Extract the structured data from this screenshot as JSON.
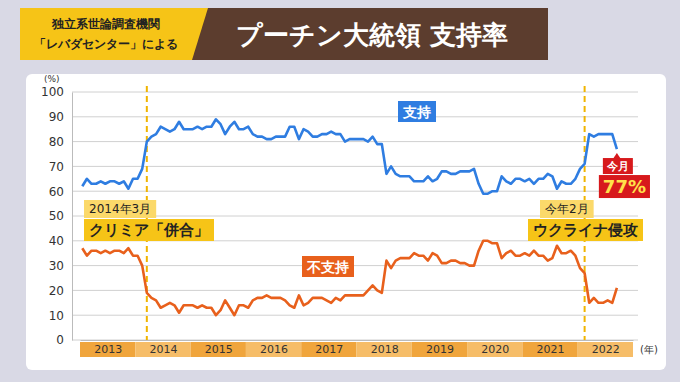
{
  "chart_data": {
    "type": "line",
    "title": "プーチン大統領 支持率",
    "source": [
      "独立系世論調査機関",
      "「レバダセンター」による"
    ],
    "ylabel": "(%)",
    "xlabel": "(年)",
    "categories": [
      "2013",
      null,
      null,
      null,
      null,
      null,
      null,
      null,
      null,
      null,
      null,
      null,
      "2014",
      null,
      null,
      null,
      null,
      null,
      null,
      null,
      null,
      null,
      null,
      null,
      "2015",
      null,
      null,
      null,
      null,
      null,
      null,
      null,
      null,
      null,
      null,
      null,
      "2016",
      null,
      null,
      null,
      null,
      null,
      null,
      null,
      null,
      null,
      null,
      null,
      "2017",
      null,
      null,
      null,
      null,
      null,
      null,
      null,
      null,
      null,
      null,
      null,
      "2018",
      null,
      null,
      null,
      null,
      null,
      null,
      null,
      null,
      null,
      null,
      null,
      "2019",
      null,
      null,
      null,
      null,
      null,
      null,
      null,
      null,
      null,
      null,
      null,
      "2020",
      null,
      null,
      null,
      null,
      null,
      null,
      null,
      null,
      null,
      null,
      null,
      "2021",
      null,
      null,
      null,
      null,
      null,
      null,
      null,
      null,
      null,
      null,
      null,
      "2022",
      null,
      null,
      null,
      null,
      null,
      null,
      null,
      null,
      null,
      null,
      null
    ],
    "series": [
      {
        "name": "支持",
        "color": "#2f7de1",
        "values": [
          62,
          65,
          63,
          63,
          64,
          63,
          64,
          64,
          63,
          64,
          61,
          65,
          65,
          69,
          80,
          82,
          83,
          86,
          85,
          84,
          85,
          88,
          85,
          85,
          85,
          86,
          85,
          86,
          86,
          89,
          87,
          83,
          86,
          88,
          85,
          85,
          86,
          83,
          82,
          82,
          81,
          81,
          82,
          82,
          82,
          86,
          86,
          81,
          85,
          84,
          82,
          82,
          83,
          83,
          84,
          83,
          83,
          80,
          81,
          81,
          81,
          81,
          80,
          82,
          79,
          79,
          67,
          70,
          67,
          66,
          66,
          66,
          64,
          64,
          64,
          66,
          64,
          65,
          68,
          68,
          67,
          67,
          68,
          68,
          68,
          69,
          63,
          59,
          59,
          60,
          60,
          66,
          64,
          63,
          65,
          65,
          64,
          65,
          63,
          65,
          65,
          67,
          66,
          61,
          64,
          63,
          63,
          65,
          69,
          71,
          83,
          82,
          83,
          83,
          83,
          83,
          77,
          null,
          null,
          null
        ]
      },
      {
        "name": "不支持",
        "color": "#e8601c",
        "values": [
          37,
          34,
          36,
          36,
          35,
          36,
          35,
          36,
          36,
          35,
          37,
          34,
          34,
          30,
          19,
          17,
          16,
          13,
          14,
          15,
          14,
          11,
          14,
          14,
          14,
          13,
          14,
          13,
          13,
          10,
          12,
          16,
          13,
          10,
          14,
          14,
          13,
          16,
          17,
          17,
          18,
          17,
          17,
          17,
          16,
          14,
          13,
          18,
          14,
          15,
          17,
          17,
          17,
          16,
          15,
          17,
          16,
          18,
          18,
          18,
          18,
          18,
          20,
          22,
          20,
          19,
          32,
          29,
          32,
          33,
          33,
          33,
          35,
          34,
          34,
          32,
          35,
          34,
          31,
          31,
          32,
          32,
          31,
          31,
          30,
          30,
          36,
          40,
          40,
          39,
          39,
          33,
          35,
          36,
          34,
          34,
          35,
          34,
          36,
          34,
          34,
          32,
          33,
          38,
          35,
          35,
          36,
          34,
          29,
          27,
          15,
          17,
          15,
          15,
          16,
          15,
          21,
          null,
          null,
          null
        ]
      }
    ],
    "annotations": [
      {
        "x": 14,
        "date": "2014年3月",
        "event": "クリミア「併合」"
      },
      {
        "x": 109,
        "date": "今年2月",
        "event": "ウクライナ侵攻"
      }
    ],
    "callout": {
      "x": 116,
      "text": "今月",
      "value": 77,
      "value_label": "77%"
    },
    "ylim": [
      0,
      100
    ],
    "yticks": [
      0,
      10,
      20,
      30,
      40,
      50,
      60,
      70,
      80,
      90,
      100
    ],
    "grid": true
  }
}
